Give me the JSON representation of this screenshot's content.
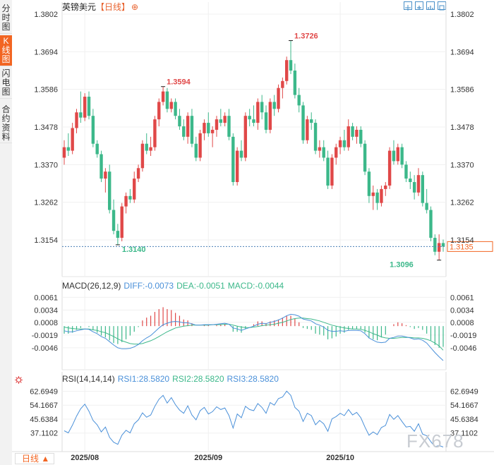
{
  "sidebar": {
    "tabs": [
      {
        "label": "分时图",
        "active": false
      },
      {
        "label": "K线图",
        "active": true
      },
      {
        "label": "闪电图",
        "active": false
      },
      {
        "label": "合约资料",
        "active": false
      }
    ]
  },
  "header": {
    "symbol": "英镑美元",
    "period": "【日线】",
    "add_icon": "plus-circle-icon",
    "tools": [
      "move-icon",
      "zoom-in-icon",
      "chart-type-icon",
      "fullscreen-icon"
    ]
  },
  "footer": {
    "period_button": "日线 ▲"
  },
  "watermark": "FX678",
  "colors": {
    "up": "#e04848",
    "down": "#3cb88a",
    "diff": "#4a90d9",
    "dea": "#3cb88a",
    "accent": "#f26522"
  },
  "chart_data": [
    {
      "type": "candlestick",
      "series_name": "英镑美元",
      "x_ticks": [
        "2025/08",
        "2025/09",
        "2025/10"
      ],
      "y_ticks": [
        "1.3802",
        "1.3694",
        "1.3586",
        "1.3478",
        "1.3370",
        "1.3262",
        "1.3154"
      ],
      "ylim": [
        1.3076,
        1.3802
      ],
      "annotations": {
        "high1": "1.3594",
        "high2": "1.3726",
        "low1": "1.3140",
        "low2": "1.3096"
      },
      "last_price": "1.3135",
      "candles": [
        [
          1.339,
          1.344,
          1.337,
          1.342
        ],
        [
          1.342,
          1.346,
          1.3395,
          1.341
        ],
        [
          1.341,
          1.349,
          1.34,
          1.3475
        ],
        [
          1.3475,
          1.353,
          1.346,
          1.352
        ],
        [
          1.352,
          1.358,
          1.349,
          1.3505
        ],
        [
          1.3505,
          1.3575,
          1.3495,
          1.3565
        ],
        [
          1.3565,
          1.358,
          1.35,
          1.351
        ],
        [
          1.351,
          1.353,
          1.342,
          1.343
        ],
        [
          1.343,
          1.344,
          1.339,
          1.34
        ],
        [
          1.34,
          1.341,
          1.332,
          1.333
        ],
        [
          1.333,
          1.336,
          1.329,
          1.335
        ],
        [
          1.335,
          1.337,
          1.323,
          1.324
        ],
        [
          1.324,
          1.327,
          1.317,
          1.318
        ],
        [
          1.318,
          1.32,
          1.314,
          1.316
        ],
        [
          1.316,
          1.326,
          1.315,
          1.325
        ],
        [
          1.325,
          1.329,
          1.323,
          1.328
        ],
        [
          1.328,
          1.33,
          1.326,
          1.327
        ],
        [
          1.327,
          1.335,
          1.326,
          1.333
        ],
        [
          1.333,
          1.337,
          1.332,
          1.336
        ],
        [
          1.336,
          1.344,
          1.335,
          1.343
        ],
        [
          1.343,
          1.346,
          1.34,
          1.341
        ],
        [
          1.341,
          1.345,
          1.3395,
          1.342
        ],
        [
          1.342,
          1.351,
          1.341,
          1.35
        ],
        [
          1.35,
          1.356,
          1.348,
          1.355
        ],
        [
          1.355,
          1.3594,
          1.354,
          1.358
        ],
        [
          1.358,
          1.359,
          1.352,
          1.353
        ],
        [
          1.353,
          1.356,
          1.352,
          1.355
        ],
        [
          1.355,
          1.356,
          1.35,
          1.351
        ],
        [
          1.351,
          1.353,
          1.347,
          1.348
        ],
        [
          1.348,
          1.35,
          1.344,
          1.345
        ],
        [
          1.345,
          1.352,
          1.343,
          1.351
        ],
        [
          1.351,
          1.353,
          1.342,
          1.343
        ],
        [
          1.343,
          1.345,
          1.338,
          1.339
        ],
        [
          1.339,
          1.347,
          1.338,
          1.346
        ],
        [
          1.346,
          1.35,
          1.344,
          1.349
        ],
        [
          1.349,
          1.352,
          1.345,
          1.346
        ],
        [
          1.346,
          1.348,
          1.342,
          1.347
        ],
        [
          1.347,
          1.351,
          1.345,
          1.35
        ],
        [
          1.35,
          1.353,
          1.348,
          1.349
        ],
        [
          1.349,
          1.352,
          1.348,
          1.351
        ],
        [
          1.351,
          1.353,
          1.344,
          1.345
        ],
        [
          1.345,
          1.346,
          1.331,
          1.332
        ],
        [
          1.332,
          1.342,
          1.331,
          1.341
        ],
        [
          1.341,
          1.344,
          1.338,
          1.339
        ],
        [
          1.339,
          1.352,
          1.338,
          1.351
        ],
        [
          1.351,
          1.353,
          1.348,
          1.35
        ],
        [
          1.35,
          1.354,
          1.348,
          1.349
        ],
        [
          1.349,
          1.356,
          1.347,
          1.355
        ],
        [
          1.355,
          1.357,
          1.35,
          1.352
        ],
        [
          1.352,
          1.354,
          1.346,
          1.347
        ],
        [
          1.347,
          1.356,
          1.346,
          1.355
        ],
        [
          1.355,
          1.357,
          1.351,
          1.353
        ],
        [
          1.353,
          1.36,
          1.352,
          1.359
        ],
        [
          1.359,
          1.362,
          1.356,
          1.361
        ],
        [
          1.361,
          1.368,
          1.36,
          1.367
        ],
        [
          1.367,
          1.3726,
          1.363,
          1.364
        ],
        [
          1.364,
          1.366,
          1.356,
          1.357
        ],
        [
          1.357,
          1.359,
          1.352,
          1.354
        ],
        [
          1.354,
          1.355,
          1.343,
          1.344
        ],
        [
          1.344,
          1.351,
          1.343,
          1.35
        ],
        [
          1.35,
          1.352,
          1.347,
          1.349
        ],
        [
          1.349,
          1.35,
          1.34,
          1.341
        ],
        [
          1.341,
          1.344,
          1.339,
          1.342
        ],
        [
          1.342,
          1.344,
          1.338,
          1.339
        ],
        [
          1.339,
          1.341,
          1.33,
          1.331
        ],
        [
          1.331,
          1.34,
          1.33,
          1.339
        ],
        [
          1.339,
          1.343,
          1.337,
          1.342
        ],
        [
          1.342,
          1.345,
          1.34,
          1.344
        ],
        [
          1.344,
          1.347,
          1.341,
          1.342
        ],
        [
          1.342,
          1.35,
          1.341,
          1.348
        ],
        [
          1.348,
          1.349,
          1.344,
          1.345
        ],
        [
          1.345,
          1.348,
          1.343,
          1.347
        ],
        [
          1.347,
          1.348,
          1.342,
          1.343
        ],
        [
          1.343,
          1.344,
          1.334,
          1.335
        ],
        [
          1.335,
          1.336,
          1.326,
          1.328
        ],
        [
          1.328,
          1.331,
          1.324,
          1.329
        ],
        [
          1.329,
          1.33,
          1.324,
          1.326
        ],
        [
          1.326,
          1.331,
          1.325,
          1.33
        ],
        [
          1.33,
          1.332,
          1.328,
          1.331
        ],
        [
          1.331,
          1.342,
          1.33,
          1.341
        ],
        [
          1.341,
          1.344,
          1.337,
          1.338
        ],
        [
          1.338,
          1.343,
          1.337,
          1.342
        ],
        [
          1.342,
          1.343,
          1.336,
          1.337
        ],
        [
          1.337,
          1.338,
          1.332,
          1.333
        ],
        [
          1.333,
          1.335,
          1.33,
          1.332
        ],
        [
          1.332,
          1.334,
          1.327,
          1.329
        ],
        [
          1.329,
          1.336,
          1.328,
          1.334
        ],
        [
          1.334,
          1.335,
          1.325,
          1.326
        ],
        [
          1.326,
          1.33,
          1.323,
          1.324
        ],
        [
          1.324,
          1.325,
          1.315,
          1.316
        ],
        [
          1.316,
          1.317,
          1.311,
          1.312
        ],
        [
          1.312,
          1.317,
          1.3096,
          1.3145
        ],
        [
          1.3145,
          1.3155,
          1.312,
          1.3135
        ]
      ]
    },
    {
      "type": "macd",
      "label": "MACD(26,12,9)",
      "diff_text": "DIFF:-0.0073",
      "dea_text": "DEA:-0.0051",
      "macd_text": "MACD:-0.0044",
      "y_ticks": [
        "0.0061",
        "0.0034",
        "0.0008",
        "-0.0019",
        "-0.0046"
      ],
      "ylim": [
        -0.0082,
        0.0072
      ],
      "diff": [
        -0.001,
        -0.0012,
        -0.0012,
        -0.001,
        -0.0008,
        -0.0006,
        -0.0007,
        -0.0012,
        -0.0016,
        -0.0022,
        -0.0026,
        -0.0033,
        -0.004,
        -0.0046,
        -0.0048,
        -0.0048,
        -0.0047,
        -0.0044,
        -0.0039,
        -0.0031,
        -0.0025,
        -0.002,
        -0.0012,
        -0.0004,
        0.0003,
        0.0006,
        0.0009,
        0.001,
        0.0009,
        0.0007,
        0.0007,
        0.0005,
        0.0002,
        0.0002,
        0.0003,
        0.0003,
        0.0003,
        0.0004,
        0.0005,
        0.0006,
        0.0004,
        -0.0004,
        -0.0006,
        -0.0009,
        -0.0006,
        -0.0003,
        0.0,
        0.0004,
        0.0006,
        0.0005,
        0.0008,
        0.001,
        0.0013,
        0.0017,
        0.0022,
        0.0025,
        0.0024,
        0.0021,
        0.0015,
        0.0013,
        0.0011,
        0.0005,
        0.0002,
        -0.0002,
        -0.0009,
        -0.0011,
        -0.0011,
        -0.001,
        -0.0011,
        -0.0009,
        -0.0009,
        -0.0009,
        -0.001,
        -0.0016,
        -0.0025,
        -0.003,
        -0.0034,
        -0.0035,
        -0.0034,
        -0.0026,
        -0.0024,
        -0.0021,
        -0.0021,
        -0.0023,
        -0.0025,
        -0.0028,
        -0.0027,
        -0.003,
        -0.0036,
        -0.0046,
        -0.0056,
        -0.0065,
        -0.0073
      ],
      "dea": [
        -0.0002,
        -0.0004,
        -0.0005,
        -0.0006,
        -0.0006,
        -0.0006,
        -0.0006,
        -0.0008,
        -0.0009,
        -0.0012,
        -0.0014,
        -0.0018,
        -0.0022,
        -0.0027,
        -0.0031,
        -0.0034,
        -0.0037,
        -0.0038,
        -0.0038,
        -0.0037,
        -0.0034,
        -0.0031,
        -0.0027,
        -0.0022,
        -0.0017,
        -0.0012,
        -0.0008,
        -0.0004,
        -0.0002,
        0.0,
        0.0001,
        0.0002,
        0.0002,
        0.0002,
        0.0002,
        0.0002,
        0.0003,
        0.0003,
        0.0003,
        0.0004,
        0.0004,
        0.0002,
        0.0,
        -0.0002,
        -0.0003,
        -0.0003,
        -0.0002,
        -0.0001,
        0.0001,
        0.0002,
        0.0003,
        0.0004,
        0.0006,
        0.0008,
        0.0011,
        0.0014,
        0.0016,
        0.0017,
        0.0017,
        0.0016,
        0.0015,
        0.0013,
        0.0011,
        0.0008,
        0.0005,
        0.0002,
        0.0,
        -0.0002,
        -0.0004,
        -0.0005,
        -0.0006,
        -0.0006,
        -0.0007,
        -0.0009,
        -0.0012,
        -0.0016,
        -0.0019,
        -0.0023,
        -0.0025,
        -0.0026,
        -0.0026,
        -0.0025,
        -0.0024,
        -0.0024,
        -0.0024,
        -0.0025,
        -0.0025,
        -0.0026,
        -0.0028,
        -0.0031,
        -0.0036,
        -0.0042,
        -0.0051
      ],
      "hist_up_color": "#e04848",
      "hist_down_color": "#3cb88a"
    },
    {
      "type": "line",
      "label": "RSI(14,14,14)",
      "rsi1_text": "RSI1:28.5820",
      "rsi2_text": "RSI2:28.5820",
      "rsi3_text": "RSI3:28.5820",
      "y_ticks": [
        "62.6949",
        "54.1667",
        "45.6384",
        "37.1102"
      ],
      "ylim": [
        27.5,
        65.5
      ],
      "values": [
        38.5,
        37.2,
        42.0,
        47.5,
        52.0,
        54.8,
        50.5,
        44.8,
        42.2,
        37.8,
        40.8,
        34.5,
        31.5,
        30.2,
        35.8,
        38.8,
        37.2,
        42.8,
        45.2,
        49.5,
        46.8,
        48.2,
        53.5,
        57.8,
        60.2,
        55.5,
        58.8,
        54.5,
        51.2,
        49.2,
        53.8,
        48.2,
        45.2,
        50.8,
        52.8,
        48.8,
        50.2,
        53.2,
        51.5,
        52.5,
        47.8,
        40.2,
        48.8,
        46.5,
        53.5,
        51.5,
        50.8,
        55.2,
        52.8,
        49.2,
        55.8,
        54.2,
        58.2,
        59.2,
        62.8,
        60.2,
        52.8,
        50.5,
        44.2,
        49.2,
        47.8,
        42.2,
        44.8,
        42.8,
        38.2,
        45.8,
        47.2,
        49.2,
        47.8,
        51.5,
        48.2,
        49.8,
        46.5,
        40.8,
        35.8,
        37.8,
        36.2,
        40.5,
        41.8,
        48.5,
        45.5,
        47.8,
        44.2,
        40.8,
        41.2,
        38.2,
        42.8,
        36.5,
        35.5,
        31.8,
        28.8,
        29.5,
        28.6
      ]
    }
  ]
}
